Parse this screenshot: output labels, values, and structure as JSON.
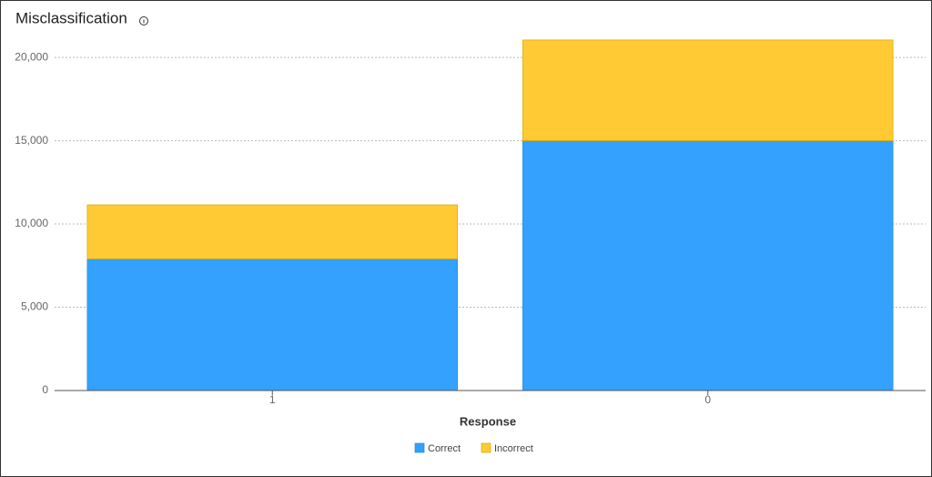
{
  "chart_data": {
    "type": "stacked-bar",
    "title": "Misclassification",
    "x_label": "Response",
    "categories": [
      "1",
      "0"
    ],
    "series": [
      {
        "name": "Correct",
        "color": "#33a1fd",
        "values": [
          7900,
          15000
        ]
      },
      {
        "name": "Incorrect",
        "color": "#ffca33",
        "values": [
          3250,
          6050
        ]
      }
    ],
    "ylim": [
      0,
      21100
    ],
    "yticks": [
      0,
      {
        "value": 5000,
        "label": "5,000"
      },
      {
        "value": 10000,
        "label": "10,000"
      },
      {
        "value": 15000,
        "label": "15,000"
      },
      {
        "value": 20000,
        "label": "20,000"
      }
    ],
    "grid": true,
    "legend": "bottom"
  }
}
